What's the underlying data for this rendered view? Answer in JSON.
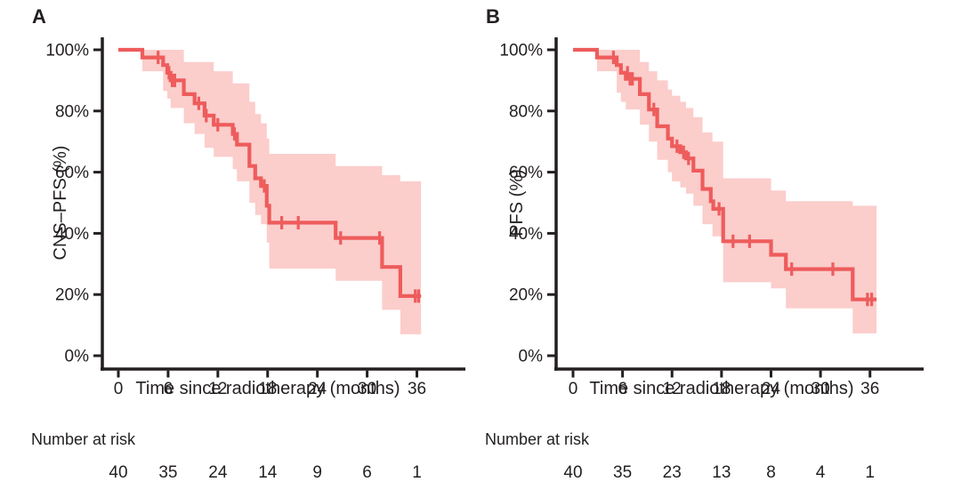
{
  "figure": {
    "background": "#ffffff",
    "text_color": "#231f20",
    "curve_color": "#ee5c5c",
    "band_color": "#fbcdcb",
    "axis_color": "#231f20"
  },
  "chart_data": [
    {
      "type": "line",
      "subtype": "kaplan-meier-step",
      "panel_label": "A",
      "ylabel": "CNS–PFS (%)",
      "xlabel": "Time since radiotherapy (months)",
      "xticks": [
        0,
        6,
        12,
        18,
        24,
        30,
        36
      ],
      "yticks": [
        0,
        20,
        40,
        60,
        80,
        100
      ],
      "ytick_labels": [
        "0%",
        "20%",
        "40%",
        "60%",
        "80%",
        "100%"
      ],
      "xlim": [
        0,
        42
      ],
      "ylim": [
        0,
        100
      ],
      "grid": false,
      "legend": "none",
      "end_time": 36.5,
      "steps": [
        [
          0,
          100
        ],
        [
          2.9,
          97.5
        ],
        [
          5.4,
          95
        ],
        [
          5.9,
          92.5
        ],
        [
          6.3,
          90
        ],
        [
          7.9,
          85.5
        ],
        [
          9.2,
          82.5
        ],
        [
          10.4,
          78.5
        ],
        [
          11.5,
          75.5
        ],
        [
          13.8,
          72.5
        ],
        [
          14.3,
          69
        ],
        [
          15.8,
          62
        ],
        [
          16.5,
          58
        ],
        [
          17.2,
          55.5
        ],
        [
          17.9,
          49
        ],
        [
          18.2,
          43.5
        ],
        [
          26.2,
          38.5
        ],
        [
          31.8,
          29
        ],
        [
          34,
          19.5
        ]
      ],
      "censors": [
        [
          4.8,
          97.5
        ],
        [
          6.1,
          92.5
        ],
        [
          6.5,
          90
        ],
        [
          6.8,
          90
        ],
        [
          9.7,
          82.5
        ],
        [
          10.6,
          78.5
        ],
        [
          12,
          75.5
        ],
        [
          14,
          72.5
        ],
        [
          17.6,
          55.5
        ],
        [
          19.7,
          43.5
        ],
        [
          21.7,
          43.5
        ],
        [
          26.8,
          38.5
        ],
        [
          31.5,
          38.5
        ],
        [
          35.8,
          19.5
        ],
        [
          36.2,
          19.5
        ]
      ],
      "ci_upper": [
        [
          2.9,
          100
        ],
        [
          7.9,
          96
        ],
        [
          11.5,
          93
        ],
        [
          13.8,
          89
        ],
        [
          15.8,
          83
        ],
        [
          16.5,
          79
        ],
        [
          17.2,
          76
        ],
        [
          17.9,
          71
        ],
        [
          18.2,
          66
        ],
        [
          26.2,
          62
        ],
        [
          31.8,
          59
        ],
        [
          34,
          57
        ]
      ],
      "ci_lower": [
        [
          2.9,
          93
        ],
        [
          5.4,
          86.5
        ],
        [
          5.9,
          84
        ],
        [
          6.3,
          81
        ],
        [
          7.9,
          76
        ],
        [
          9.2,
          72.5
        ],
        [
          10.4,
          68
        ],
        [
          11.5,
          65
        ],
        [
          13.8,
          61
        ],
        [
          14.3,
          57
        ],
        [
          15.8,
          50
        ],
        [
          16.5,
          46
        ],
        [
          17.2,
          43
        ],
        [
          17.9,
          37
        ],
        [
          18.2,
          28.5
        ],
        [
          26.2,
          24.5
        ],
        [
          31.8,
          15
        ],
        [
          34,
          7
        ]
      ],
      "risk_table": {
        "label": "Number at risk",
        "times": [
          0,
          6,
          12,
          18,
          24,
          30,
          36
        ],
        "counts": [
          40,
          35,
          24,
          14,
          9,
          6,
          1
        ]
      }
    },
    {
      "type": "line",
      "subtype": "kaplan-meier-step",
      "panel_label": "B",
      "ylabel": "PFS (%)",
      "xlabel": "Time since radiotherapy (months)",
      "xticks": [
        0,
        6,
        12,
        18,
        24,
        30,
        36
      ],
      "yticks": [
        0,
        20,
        40,
        60,
        80,
        100
      ],
      "ytick_labels": [
        "0%",
        "20%",
        "40%",
        "60%",
        "80%",
        "100%"
      ],
      "xlim": [
        0,
        42
      ],
      "ylim": [
        0,
        100
      ],
      "grid": false,
      "legend": "none",
      "end_time": 36.8,
      "steps": [
        [
          0,
          100
        ],
        [
          2.9,
          97.5
        ],
        [
          5.3,
          95
        ],
        [
          5.8,
          92.5
        ],
        [
          6.4,
          90.5
        ],
        [
          8.1,
          85.5
        ],
        [
          9.2,
          80.5
        ],
        [
          10.2,
          75
        ],
        [
          11.5,
          71
        ],
        [
          12,
          68.5
        ],
        [
          13,
          66.5
        ],
        [
          13.7,
          64.5
        ],
        [
          14.6,
          60.5
        ],
        [
          15.7,
          54.5
        ],
        [
          16.7,
          50.5
        ],
        [
          17,
          48
        ],
        [
          18.2,
          37.4
        ],
        [
          24,
          33
        ],
        [
          25.8,
          28.3
        ],
        [
          33.9,
          18.4
        ]
      ],
      "censors": [
        [
          4.9,
          97.5
        ],
        [
          6.6,
          92.5
        ],
        [
          6.9,
          90.5
        ],
        [
          7.2,
          90.5
        ],
        [
          9.8,
          80.5
        ],
        [
          12.6,
          68.5
        ],
        [
          13.4,
          66.5
        ],
        [
          14,
          64.5
        ],
        [
          17.7,
          48
        ],
        [
          19.4,
          37.4
        ],
        [
          21.4,
          37.4
        ],
        [
          26.5,
          28.3
        ],
        [
          31.5,
          28.3
        ],
        [
          35.7,
          18.4
        ],
        [
          36.2,
          18.4
        ]
      ],
      "ci_upper": [
        [
          2.9,
          100
        ],
        [
          8.1,
          96
        ],
        [
          9.2,
          93
        ],
        [
          10.2,
          90
        ],
        [
          11.5,
          87
        ],
        [
          12,
          85
        ],
        [
          13,
          83
        ],
        [
          13.7,
          81
        ],
        [
          14.6,
          78
        ],
        [
          15.7,
          73
        ],
        [
          16.9,
          70
        ],
        [
          18.2,
          58
        ],
        [
          24,
          54
        ],
        [
          25.8,
          50.5
        ],
        [
          33.9,
          49
        ]
      ],
      "ci_lower": [
        [
          2.9,
          93
        ],
        [
          5.3,
          86
        ],
        [
          5.8,
          83
        ],
        [
          6.4,
          80.5
        ],
        [
          8.1,
          75.5
        ],
        [
          9.2,
          70
        ],
        [
          10.2,
          64
        ],
        [
          11.5,
          60
        ],
        [
          12,
          57
        ],
        [
          13,
          55
        ],
        [
          13.7,
          53
        ],
        [
          14.6,
          49
        ],
        [
          15.7,
          43
        ],
        [
          16.9,
          39
        ],
        [
          18.2,
          24
        ],
        [
          24,
          22
        ],
        [
          25.8,
          15.5
        ],
        [
          33.9,
          7.3
        ]
      ],
      "risk_table": {
        "label": "Number at risk",
        "times": [
          0,
          6,
          12,
          18,
          24,
          30,
          36
        ],
        "counts": [
          40,
          35,
          23,
          13,
          8,
          4,
          1
        ]
      }
    }
  ]
}
